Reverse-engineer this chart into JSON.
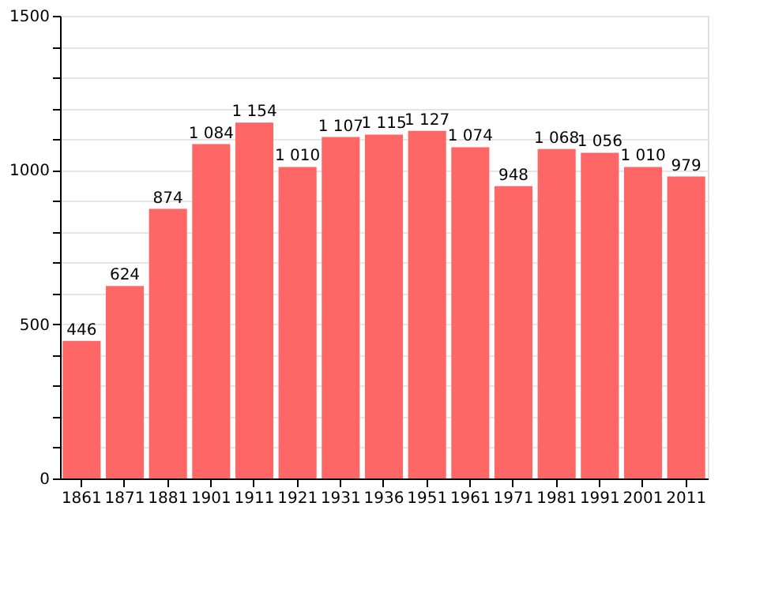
{
  "chart_data": {
    "type": "bar",
    "categories": [
      "1861",
      "1871",
      "1881",
      "1901",
      "1911",
      "1921",
      "1931",
      "1936",
      "1951",
      "1961",
      "1971",
      "1981",
      "1991",
      "2001",
      "2011"
    ],
    "values": [
      446,
      624,
      874,
      1084,
      1154,
      1010,
      1107,
      1115,
      1127,
      1074,
      948,
      1068,
      1056,
      1010,
      979
    ],
    "value_labels": [
      "446",
      "624",
      "874",
      "1 084",
      "1 154",
      "1 010",
      "1 107",
      "1 115",
      "1 127",
      "1 074",
      "948",
      "1 068",
      "1 056",
      "1 010",
      "979"
    ],
    "color": "#ff6666",
    "ylim": [
      0,
      1500
    ],
    "yticks": [
      0,
      {
        "value": 100,
        "label": null
      },
      {
        "value": 200,
        "label": null
      },
      {
        "value": 300,
        "label": null
      },
      {
        "value": 400,
        "label": null
      },
      500,
      {
        "value": 600,
        "label": null
      },
      {
        "value": 700,
        "label": null
      },
      {
        "value": 800,
        "label": null
      },
      {
        "value": 900,
        "label": null
      },
      1000,
      {
        "value": 1100,
        "label": null
      },
      {
        "value": 1200,
        "label": null
      },
      {
        "value": 1300,
        "label": null
      },
      {
        "value": 1400,
        "label": null
      },
      1500
    ],
    "grid": "y"
  }
}
